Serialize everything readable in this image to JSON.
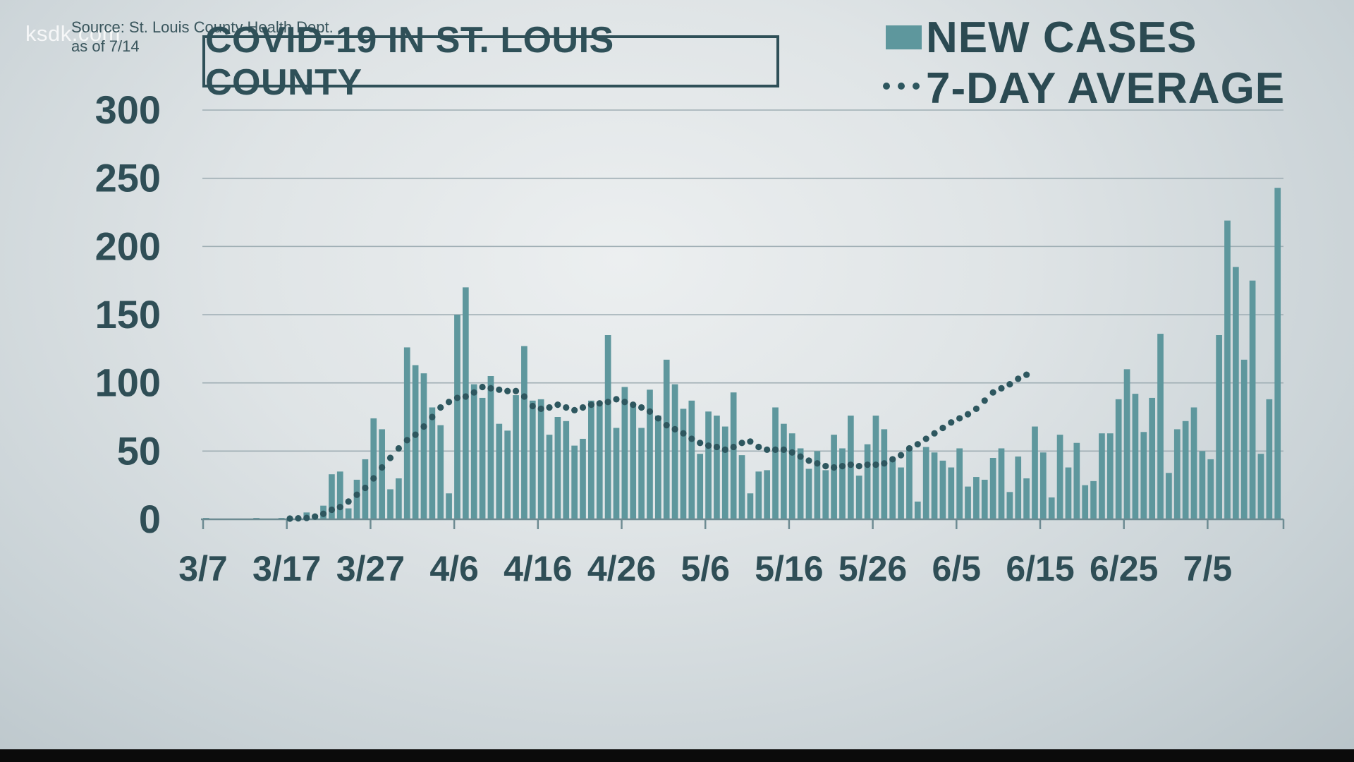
{
  "watermark": "ksdk.com",
  "source_line": "Source: St. Louis County Health Dept.",
  "as_of": "as of 7/14",
  "colors": {
    "bar": "#5e979d",
    "dots": "#2e575f",
    "text": "#2f4e56",
    "grid": "#9eadb3"
  },
  "chart_data": {
    "type": "bar",
    "title": "COVID-19 IN ST. LOUIS COUNTY",
    "xlabel": "",
    "ylabel": "",
    "ylim": [
      0,
      300
    ],
    "y_ticks": [
      0,
      50,
      100,
      150,
      200,
      250,
      300
    ],
    "x_tick_labels": [
      "3/7",
      "3/17",
      "3/27",
      "4/6",
      "4/16",
      "4/26",
      "5/6",
      "5/16",
      "5/26",
      "6/5",
      "6/15",
      "6/25",
      "7/5"
    ],
    "grid": true,
    "legend_position": "top-right",
    "legend": [
      {
        "label": "NEW CASES",
        "kind": "bar"
      },
      {
        "label": "7-DAY AVERAGE",
        "kind": "dotted-line"
      }
    ],
    "series": [
      {
        "name": "NEW CASES",
        "kind": "bar",
        "start_date": "3/7",
        "values": [
          1,
          0,
          0,
          0,
          0,
          0,
          1,
          0,
          0,
          1,
          1,
          1,
          5,
          3,
          10,
          33,
          35,
          8,
          29,
          44,
          74,
          66,
          22,
          30,
          126,
          113,
          107,
          82,
          69,
          19,
          150,
          170,
          99,
          89,
          105,
          70,
          65,
          91,
          127,
          87,
          88,
          62,
          75,
          72,
          54,
          59,
          87,
          85,
          135,
          67,
          97,
          83,
          67,
          95,
          76,
          117,
          99,
          81,
          87,
          48,
          79,
          76,
          68,
          93,
          47,
          19,
          35,
          36,
          82,
          70,
          63,
          52,
          37,
          50,
          36,
          62,
          52,
          76,
          32,
          55,
          76,
          66,
          44,
          38,
          53,
          13,
          53,
          49,
          43,
          38,
          52,
          24,
          31,
          29,
          45,
          52,
          20,
          46,
          30,
          68,
          49,
          16,
          62,
          38,
          56,
          25,
          28,
          63,
          63,
          88,
          110,
          92,
          64,
          89,
          136,
          34,
          66,
          72,
          82,
          50,
          44,
          135,
          219,
          185,
          117,
          175,
          48,
          88,
          243
        ]
      },
      {
        "name": "7-DAY AVERAGE",
        "kind": "dotted-line",
        "start_date": "3/17",
        "values": [
          0.5,
          0.7,
          1,
          2,
          4,
          7,
          9,
          13,
          18,
          23,
          30,
          38,
          45,
          52,
          58,
          62,
          68,
          75,
          82,
          86,
          89,
          90,
          93,
          97,
          96,
          95,
          94,
          94,
          90,
          83,
          81,
          82,
          84,
          82,
          80,
          82,
          84,
          85,
          86,
          88,
          86,
          84,
          82,
          79,
          74,
          69,
          66,
          63,
          59,
          56,
          54,
          53,
          51,
          53,
          56,
          57,
          53,
          51,
          51,
          51,
          49,
          46,
          43,
          41,
          39,
          38,
          39,
          40,
          39,
          40,
          40,
          41,
          44,
          47,
          52,
          55,
          59,
          63,
          67,
          71,
          74,
          77,
          81,
          87,
          93,
          96,
          99,
          103,
          106
        ]
      }
    ]
  }
}
